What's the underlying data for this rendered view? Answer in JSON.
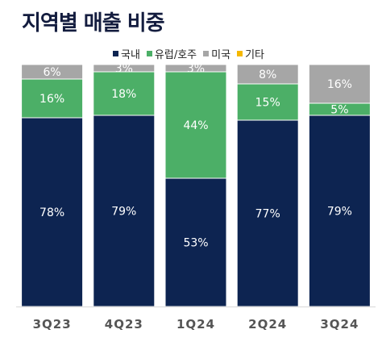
{
  "chart_data": {
    "type": "bar",
    "stacked": true,
    "normalized": true,
    "title": "지역별 매출 비중",
    "categories": [
      "3Q23",
      "4Q23",
      "1Q24",
      "2Q24",
      "3Q24"
    ],
    "series": [
      {
        "name": "국내",
        "color": "#0d2451",
        "values": [
          78,
          79,
          53,
          77,
          79
        ],
        "labels": [
          "78%",
          "79%",
          "53%",
          "77%",
          "79%"
        ]
      },
      {
        "name": "유럽/호주",
        "color": "#4caf67",
        "values": [
          16,
          18,
          44,
          15,
          5
        ],
        "labels": [
          "16%",
          "18%",
          "44%",
          "15%",
          "5%"
        ]
      },
      {
        "name": "미국",
        "color": "#a6a6a6",
        "values": [
          6,
          3,
          3,
          8,
          16
        ],
        "labels": [
          "6%",
          "3%",
          "3%",
          "8%",
          "16%"
        ]
      },
      {
        "name": "기타",
        "color": "#f5b800",
        "values": [
          0,
          0,
          0,
          0,
          0
        ],
        "labels": [
          "",
          "",
          "",
          "",
          ""
        ]
      }
    ],
    "ylim": [
      0,
      100
    ],
    "legend_position": "top",
    "grid": false
  }
}
